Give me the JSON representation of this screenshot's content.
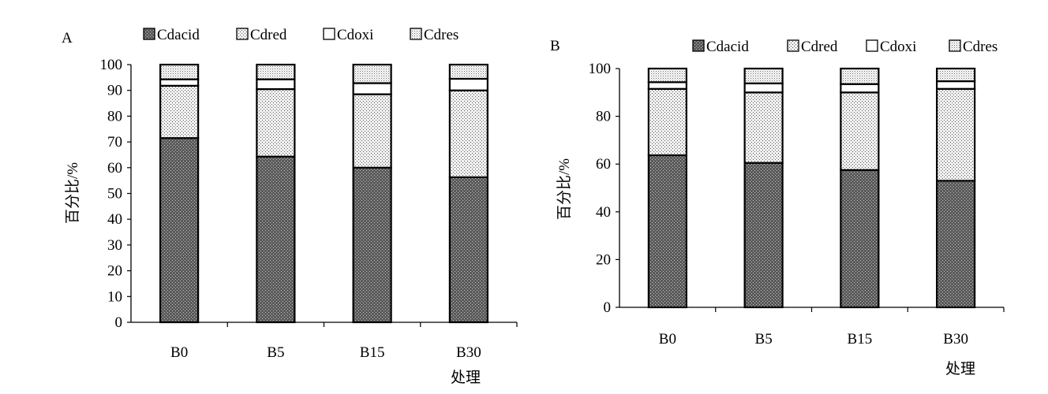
{
  "colors": {
    "bar_outline": "#000000",
    "axis": "#000000",
    "background": "#ffffff"
  },
  "legend_patterns": [
    "dense-crosshatch-dark",
    "dotted-light",
    "solid-white",
    "striped-light"
  ],
  "chart_data": [
    {
      "type": "bar",
      "stacked": true,
      "panel_label": "A",
      "categories": [
        "B0",
        "B5",
        "B15",
        "B30"
      ],
      "series": [
        {
          "name": "Cdacid",
          "values": [
            71.5,
            64.3,
            60.0,
            56.3
          ]
        },
        {
          "name": "Cdred",
          "values": [
            20.3,
            26.2,
            28.5,
            33.7
          ]
        },
        {
          "name": "Cdoxi",
          "values": [
            2.5,
            3.8,
            4.3,
            4.5
          ]
        },
        {
          "name": "Cdres",
          "values": [
            5.7,
            5.7,
            7.2,
            5.5
          ]
        }
      ],
      "ylim": [
        0,
        100
      ],
      "yticks": [
        "0",
        "10",
        "20",
        "30",
        "40",
        "50",
        "60",
        "70",
        "80",
        "90",
        "100"
      ],
      "ylabel": "百分比/%",
      "xlabel": "处理",
      "legend_position": "top",
      "grid": false
    },
    {
      "type": "bar",
      "stacked": true,
      "panel_label": "B",
      "categories": [
        "B0",
        "B5",
        "B15",
        "B30"
      ],
      "series": [
        {
          "name": "Cdacid",
          "values": [
            63.7,
            60.5,
            57.5,
            53.0
          ]
        },
        {
          "name": "Cdred",
          "values": [
            27.8,
            29.5,
            32.5,
            38.5
          ]
        },
        {
          "name": "Cdoxi",
          "values": [
            2.8,
            3.8,
            3.5,
            3.2
          ]
        },
        {
          "name": "Cdres",
          "values": [
            5.7,
            6.2,
            6.5,
            5.3
          ]
        }
      ],
      "ylim": [
        0,
        100
      ],
      "yticks": [
        "0",
        "20",
        "40",
        "60",
        "80",
        "100"
      ],
      "ylabel": "百分比/%",
      "xlabel": "处理",
      "legend_position": "top-right",
      "grid": false
    }
  ]
}
